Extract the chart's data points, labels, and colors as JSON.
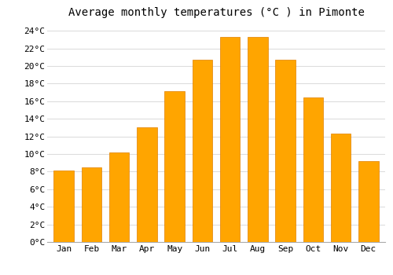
{
  "title": "Average monthly temperatures (°C ) in Pimonte",
  "months": [
    "Jan",
    "Feb",
    "Mar",
    "Apr",
    "May",
    "Jun",
    "Jul",
    "Aug",
    "Sep",
    "Oct",
    "Nov",
    "Dec"
  ],
  "values": [
    8.1,
    8.5,
    10.2,
    13.0,
    17.1,
    20.7,
    23.3,
    23.3,
    20.7,
    16.4,
    12.3,
    9.2
  ],
  "bar_color": "#FFA500",
  "bar_edge_color": "#E08000",
  "background_color": "#FFFFFF",
  "plot_bg_color": "#FFFFFF",
  "grid_color": "#DDDDDD",
  "ylim": [
    0,
    25
  ],
  "ytick_step": 2,
  "title_fontsize": 10,
  "tick_fontsize": 8,
  "font_family": "monospace"
}
